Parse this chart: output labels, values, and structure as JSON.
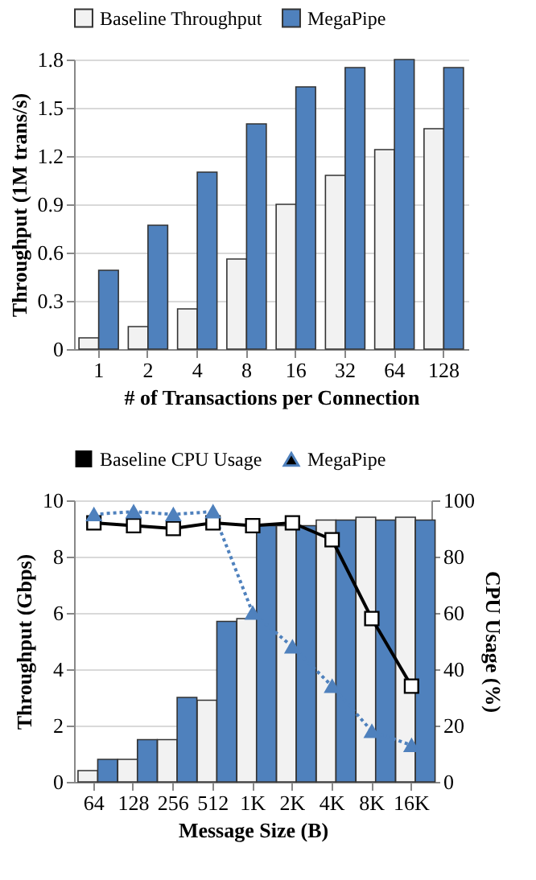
{
  "chart_data": [
    {
      "type": "bar",
      "xlabel": "# of Transactions per Connection",
      "ylabel": "Throughput (1M trans/s)",
      "categories": [
        "1",
        "2",
        "4",
        "8",
        "16",
        "32",
        "64",
        "128"
      ],
      "series": [
        {
          "name": "Baseline Throughput",
          "color": "#f2f2f2",
          "values": [
            0.07,
            0.14,
            0.25,
            0.56,
            0.9,
            1.08,
            1.24,
            1.37
          ]
        },
        {
          "name": "MegaPipe",
          "color": "#4f81bd",
          "values": [
            0.49,
            0.77,
            1.1,
            1.4,
            1.63,
            1.75,
            1.8,
            1.75
          ]
        }
      ],
      "ylim": [
        0,
        1.8
      ],
      "yticks": [
        {
          "value": 0,
          "label": "0"
        },
        0.3,
        0.6,
        0.9,
        1.2,
        1.5,
        1.8
      ],
      "grid": "y",
      "legend": "top"
    },
    {
      "type": "bar",
      "xlabel": "Message Size (B)",
      "ylabel": "Throughput (Gbps)",
      "y2label": "CPU Usage (%)",
      "categories": [
        "64",
        "128",
        "256",
        "512",
        "1K",
        "2K",
        "4K",
        "8K",
        "16K"
      ],
      "series": [
        {
          "color": "#f2f2f2",
          "values": [
            0.4,
            0.8,
            1.5,
            2.9,
            5.8,
            9.1,
            9.3,
            9.4,
            9.4
          ]
        },
        {
          "color": "#4f81bd",
          "values": [
            0.8,
            1.5,
            3,
            5.7,
            9.1,
            9.1,
            9.3,
            9.3,
            9.3
          ]
        },
        {
          "name": "Baseline CPU Usage",
          "type": "line",
          "axis": "y2",
          "color": "#000000",
          "marker": "square",
          "line_style": "solid",
          "values": [
            92,
            91,
            90,
            92,
            91,
            92,
            86,
            58,
            34
          ]
        },
        {
          "name": "MegaPipe",
          "type": "line",
          "axis": "y2",
          "color": "#4f81bd",
          "marker": "triangle",
          "line_style": "dotted",
          "values": [
            95,
            96,
            95,
            96,
            60,
            48,
            34,
            18,
            13
          ]
        }
      ],
      "ylim": [
        0,
        10
      ],
      "yticks": [
        0,
        2,
        4,
        6,
        8,
        10
      ],
      "y2lim": [
        0,
        100
      ],
      "y2ticks": [
        0,
        20,
        40,
        60,
        80,
        100
      ],
      "grid": "y",
      "legend": "top"
    }
  ]
}
